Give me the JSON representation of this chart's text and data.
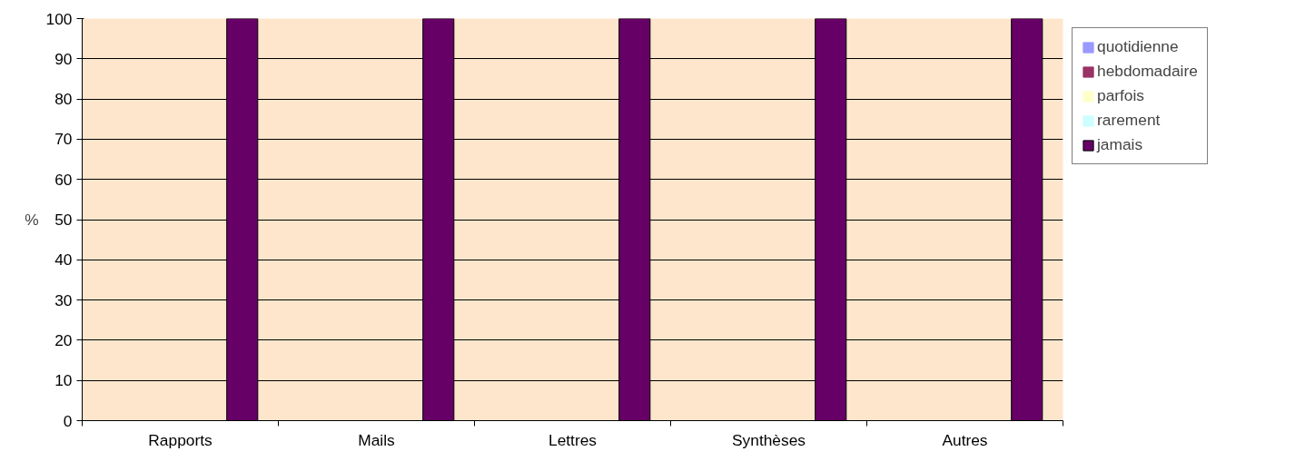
{
  "chart_data": {
    "type": "bar",
    "ylabel": "%",
    "categories": [
      "Rapports",
      "Mails",
      "Lettres",
      "Synthèses",
      "Autres"
    ],
    "series": [
      {
        "name": "quotidienne",
        "color": "#9999ff",
        "values": [
          0,
          0,
          0,
          0,
          0
        ]
      },
      {
        "name": "hebdomadaire",
        "color": "#993366",
        "values": [
          0,
          0,
          0,
          0,
          0
        ]
      },
      {
        "name": "parfois",
        "color": "#ffffcc",
        "values": [
          0,
          0,
          0,
          0,
          0
        ]
      },
      {
        "name": "rarement",
        "color": "#ccffff",
        "values": [
          0,
          0,
          0,
          0,
          0
        ]
      },
      {
        "name": "jamais",
        "color": "#660066",
        "values": [
          100,
          100,
          100,
          100,
          100
        ]
      }
    ],
    "ylim": [
      0,
      100
    ],
    "yticks": [
      0,
      10,
      20,
      30,
      40,
      50,
      60,
      70,
      80,
      90,
      100
    ],
    "grid": "y",
    "legend": "right"
  }
}
